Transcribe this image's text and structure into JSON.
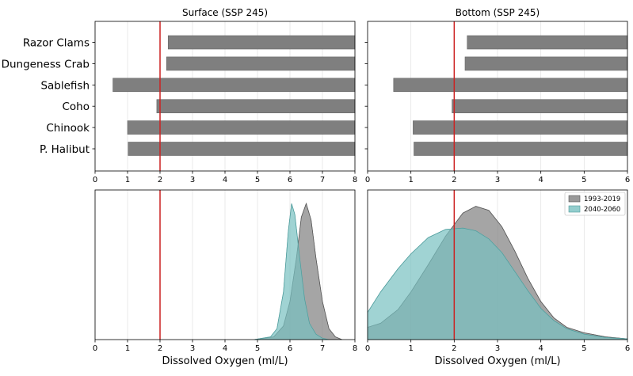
{
  "chart_data": [
    {
      "type": "bar",
      "orientation": "horizontal",
      "title": "Surface (SSP 245)",
      "categories": [
        "Razor Clams",
        "Dungeness Crab",
        "Sablefish",
        "Coho",
        "Chinook",
        "P. Halibut"
      ],
      "ranges": [
        [
          2.25,
          8
        ],
        [
          2.2,
          8
        ],
        [
          0.55,
          8
        ],
        [
          1.9,
          8
        ],
        [
          1.0,
          8
        ],
        [
          1.02,
          8
        ]
      ],
      "xlim": [
        0,
        8
      ],
      "xticks": [
        "0",
        "1",
        "2",
        "3",
        "4",
        "5",
        "6",
        "7",
        "8"
      ],
      "threshold": 2.0,
      "grid": true
    },
    {
      "type": "bar",
      "orientation": "horizontal",
      "title": "Bottom (SSP 245)",
      "categories": [
        "Razor Clams",
        "Dungeness Crab",
        "Sablefish",
        "Coho",
        "Chinook",
        "P. Halibut"
      ],
      "ranges": [
        [
          2.3,
          6
        ],
        [
          2.25,
          6
        ],
        [
          0.6,
          6
        ],
        [
          1.95,
          6
        ],
        [
          1.05,
          6
        ],
        [
          1.07,
          6
        ]
      ],
      "xlim": [
        0,
        6
      ],
      "xticks": [
        "0",
        "1",
        "2",
        "3",
        "4",
        "5",
        "6"
      ],
      "threshold": 2.0,
      "grid": true
    },
    {
      "type": "area",
      "xlabel": "Dissolved Oxygen (ml/L)",
      "xlim": [
        0,
        8
      ],
      "xticks": [
        "0",
        "1",
        "2",
        "3",
        "4",
        "5",
        "6",
        "7",
        "8"
      ],
      "threshold": 2.0,
      "grid": true,
      "series": [
        {
          "color": "#7f7f7f",
          "x": [
            4.9,
            5.5,
            5.8,
            6.0,
            6.2,
            6.35,
            6.5,
            6.65,
            6.8,
            7.0,
            7.2,
            7.4,
            7.6
          ],
          "y": [
            0,
            0.02,
            0.1,
            0.28,
            0.6,
            0.9,
            1.0,
            0.88,
            0.6,
            0.28,
            0.08,
            0.02,
            0
          ]
        },
        {
          "color": "#78c0c0",
          "x": [
            4.9,
            5.4,
            5.6,
            5.8,
            5.95,
            6.05,
            6.15,
            6.3,
            6.45,
            6.6,
            6.8,
            7.0,
            7.2
          ],
          "y": [
            0,
            0.02,
            0.08,
            0.35,
            0.8,
            1.0,
            0.92,
            0.6,
            0.3,
            0.12,
            0.04,
            0.01,
            0
          ]
        }
      ]
    },
    {
      "type": "area",
      "xlabel": "Dissolved Oxygen (ml/L)",
      "xlim": [
        0,
        6
      ],
      "xticks": [
        "0",
        "1",
        "2",
        "3",
        "4",
        "5",
        "6"
      ],
      "threshold": 2.0,
      "grid": true,
      "legend_position": "top-right",
      "series": [
        {
          "name": "1993-2019",
          "color": "#7f7f7f",
          "x": [
            0,
            0.3,
            0.7,
            1.0,
            1.4,
            1.8,
            2.2,
            2.5,
            2.8,
            3.1,
            3.4,
            3.7,
            4.0,
            4.3,
            4.6,
            5.0,
            5.5,
            6.0
          ],
          "y": [
            0.09,
            0.12,
            0.22,
            0.35,
            0.55,
            0.76,
            0.93,
            0.98,
            0.95,
            0.83,
            0.65,
            0.45,
            0.28,
            0.16,
            0.09,
            0.05,
            0.02,
            0.005
          ]
        },
        {
          "name": "2040-2060",
          "color": "#78c0c0",
          "x": [
            0,
            0.3,
            0.7,
            1.0,
            1.4,
            1.8,
            2.2,
            2.5,
            2.8,
            3.1,
            3.4,
            3.7,
            4.0,
            4.3,
            4.6,
            5.0,
            5.5,
            6.0
          ],
          "y": [
            0.2,
            0.35,
            0.52,
            0.63,
            0.75,
            0.81,
            0.82,
            0.8,
            0.74,
            0.64,
            0.5,
            0.36,
            0.23,
            0.14,
            0.08,
            0.04,
            0.015,
            0.005
          ]
        }
      ]
    }
  ]
}
